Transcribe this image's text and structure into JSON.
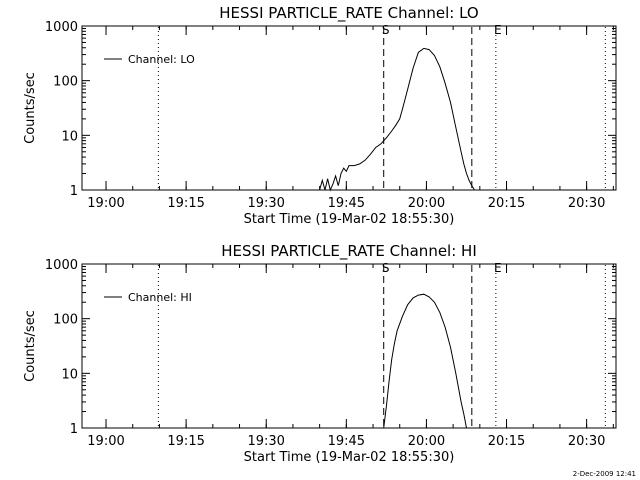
{
  "footer": {
    "date": "2-Dec-2009 12:41"
  },
  "chart_data": [
    {
      "type": "line",
      "title": "HESSI PARTICLE_RATE Channel: LO",
      "xlabel": "Start Time (19-Mar-02 18:55:30)",
      "ylabel": "Counts/sec",
      "x_unit": "minutes since 18:55:30",
      "xlim": [
        0,
        100
      ],
      "ylim": [
        1,
        1000
      ],
      "yscale": "log",
      "grid": false,
      "legend": "top-left",
      "x_ticks": [
        {
          "pos": 4.5,
          "label": "19:00"
        },
        {
          "pos": 19.5,
          "label": "19:15"
        },
        {
          "pos": 34.5,
          "label": "19:30"
        },
        {
          "pos": 49.5,
          "label": "19:45"
        },
        {
          "pos": 64.5,
          "label": "20:00"
        },
        {
          "pos": 79.5,
          "label": "20:15"
        },
        {
          "pos": 94.5,
          "label": "20:30"
        }
      ],
      "y_ticks": [
        {
          "value": 1,
          "label": "1"
        },
        {
          "value": 10,
          "label": "10"
        },
        {
          "value": 100,
          "label": "100"
        },
        {
          "value": 1000,
          "label": "1000"
        }
      ],
      "series": [
        {
          "name": "Channel: LO",
          "x": [
            44.5,
            45.0,
            45.5,
            46.0,
            46.5,
            47.0,
            47.5,
            48.0,
            48.5,
            49.0,
            49.5,
            50.0,
            51.0,
            52.0,
            53.0,
            54.0,
            55.0,
            56.0,
            57.0,
            58.0,
            58.7,
            59.5,
            60.0,
            61.0,
            62.0,
            63.0,
            64.0,
            65.0,
            66.0,
            67.0,
            68.0,
            69.0,
            70.0,
            71.0,
            71.5,
            72.0,
            72.5,
            73.0,
            73.5
          ],
          "y": [
            1,
            1.5,
            1,
            1.6,
            1,
            1.3,
            1.8,
            1.2,
            2,
            2.5,
            2.2,
            2.8,
            2.8,
            3,
            3.5,
            4.5,
            6,
            7,
            9,
            12,
            15,
            20,
            30,
            70,
            170,
            330,
            390,
            370,
            290,
            180,
            90,
            40,
            14,
            5,
            3,
            2,
            1.5,
            1.2,
            1
          ]
        }
      ],
      "annotations": [
        {
          "label": "S",
          "x": 56.5,
          "line": "dashed"
        },
        {
          "x": 73.0,
          "line": "dashed"
        },
        {
          "label": "E",
          "x": 77.5,
          "line": "dotted"
        },
        {
          "x": 14.3,
          "line": "dotted"
        },
        {
          "x": 98.0,
          "line": "dotted"
        }
      ]
    },
    {
      "type": "line",
      "title": "HESSI PARTICLE_RATE Channel: HI",
      "xlabel": "Start Time (19-Mar-02 18:55:30)",
      "ylabel": "Counts/sec",
      "x_unit": "minutes since 18:55:30",
      "xlim": [
        0,
        100
      ],
      "ylim": [
        1,
        1000
      ],
      "yscale": "log",
      "grid": false,
      "legend": "top-left",
      "x_ticks": [
        {
          "pos": 4.5,
          "label": "19:00"
        },
        {
          "pos": 19.5,
          "label": "19:15"
        },
        {
          "pos": 34.5,
          "label": "19:30"
        },
        {
          "pos": 49.5,
          "label": "19:45"
        },
        {
          "pos": 64.5,
          "label": "20:00"
        },
        {
          "pos": 79.5,
          "label": "20:15"
        },
        {
          "pos": 94.5,
          "label": "20:30"
        }
      ],
      "y_ticks": [
        {
          "value": 1,
          "label": "1"
        },
        {
          "value": 10,
          "label": "10"
        },
        {
          "value": 100,
          "label": "100"
        },
        {
          "value": 1000,
          "label": "1000"
        }
      ],
      "series": [
        {
          "name": "Channel: HI",
          "x": [
            56.5,
            57.0,
            57.5,
            58.0,
            58.5,
            59.0,
            60.0,
            61.0,
            62.0,
            63.0,
            64.0,
            65.0,
            66.0,
            67.0,
            68.0,
            69.0,
            70.0,
            71.0,
            71.5,
            72.0
          ],
          "y": [
            1,
            2.5,
            7,
            18,
            35,
            60,
            110,
            180,
            240,
            270,
            280,
            250,
            200,
            130,
            70,
            30,
            10,
            3,
            1.8,
            1
          ]
        }
      ],
      "annotations": [
        {
          "label": "S",
          "x": 56.5,
          "line": "dashed"
        },
        {
          "x": 73.0,
          "line": "dashed"
        },
        {
          "label": "E",
          "x": 77.5,
          "line": "dotted"
        },
        {
          "x": 14.3,
          "line": "dotted"
        },
        {
          "x": 98.0,
          "line": "dotted"
        }
      ]
    }
  ]
}
